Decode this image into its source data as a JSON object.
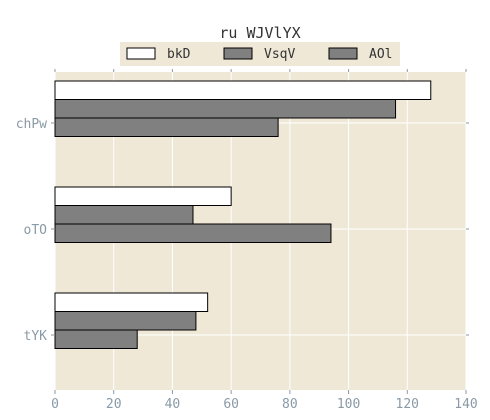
{
  "chart_data": {
    "type": "bar",
    "orientation": "horizontal",
    "title": "ru WJVlYX",
    "xlabel": "",
    "ylabel": "",
    "categories": [
      "chPw",
      "oTO",
      "tYK"
    ],
    "series": [
      {
        "name": "bkD",
        "values": [
          128,
          60,
          52
        ]
      },
      {
        "name": "VsqV",
        "values": [
          116,
          47,
          48
        ]
      },
      {
        "name": "AOl",
        "values": [
          76,
          94,
          28
        ]
      }
    ],
    "xlim": [
      0,
      140
    ],
    "xticks": [
      0,
      20,
      40,
      60,
      80,
      100,
      120,
      140
    ],
    "grid": true,
    "legend_position": "top"
  },
  "colors": {
    "plot_background": "#efe8d7",
    "legend_background": "#efe8d7",
    "grid": "#ffffff",
    "tick_label": "#8a9aa6",
    "title": "#333333",
    "series": [
      "#ffffff",
      "#808080",
      "#808080"
    ],
    "edge": "#000000"
  }
}
